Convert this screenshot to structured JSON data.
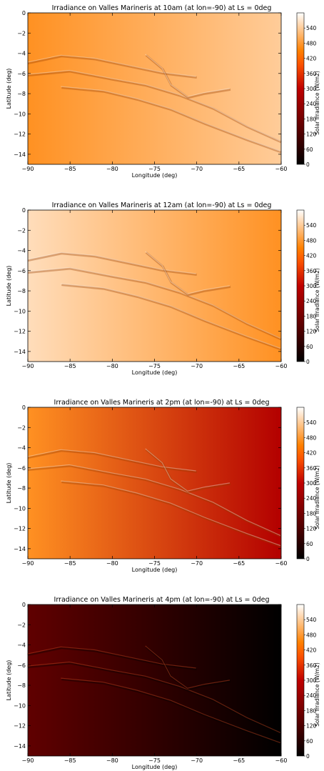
{
  "chart_data": [
    {
      "type": "heatmap",
      "title": "Irradiance on Valles Marineris at 10am (at lon=-90) at Ls = 0deg",
      "xlabel": "Longitude (deg)",
      "ylabel": "Latitude (deg)",
      "xlim": [
        -90,
        -60
      ],
      "ylim": [
        -15,
        0
      ],
      "xticks": [
        -90,
        -85,
        -80,
        -75,
        -70,
        -65,
        -60
      ],
      "yticks": [
        0,
        -2,
        -4,
        -6,
        -8,
        -10,
        -12,
        -14
      ],
      "grid": false,
      "colorbar": {
        "label": "Solar Irradiance (W/m2)",
        "ticks": [
          0,
          60,
          120,
          180,
          240,
          300,
          360,
          420,
          480,
          540
        ],
        "range": [
          0,
          600
        ]
      },
      "approx_irradiance": {
        "west": 470,
        "east": 540
      }
    },
    {
      "type": "heatmap",
      "title": "Irradiance on Valles Marineris at 12am (at lon=-90) at Ls = 0deg",
      "xlabel": "Longitude (deg)",
      "ylabel": "Latitude (deg)",
      "xlim": [
        -90,
        -60
      ],
      "ylim": [
        -15,
        0
      ],
      "xticks": [
        -90,
        -85,
        -80,
        -75,
        -70,
        -65,
        -60
      ],
      "yticks": [
        0,
        -2,
        -4,
        -6,
        -8,
        -10,
        -12,
        -14
      ],
      "grid": false,
      "colorbar": {
        "label": "Solar Irradiance (W/m2)",
        "ticks": [
          0,
          60,
          120,
          180,
          240,
          300,
          360,
          420,
          480,
          540
        ],
        "range": [
          0,
          600
        ]
      },
      "approx_irradiance": {
        "west": 560,
        "east": 470
      }
    },
    {
      "type": "heatmap",
      "title": "Irradiance on Valles Marineris at 2pm (at lon=-90) at Ls = 0deg",
      "xlabel": "Longitude (deg)",
      "ylabel": "Latitude (deg)",
      "xlim": [
        -90,
        -60
      ],
      "ylim": [
        -15,
        0
      ],
      "xticks": [
        -90,
        -85,
        -80,
        -75,
        -70,
        -65,
        -60
      ],
      "yticks": [
        0,
        -2,
        -4,
        -6,
        -8,
        -10,
        -12,
        -14
      ],
      "grid": false,
      "colorbar": {
        "label": "Solar Irradiance (W/m2)",
        "ticks": [
          0,
          60,
          120,
          180,
          240,
          300,
          360,
          420,
          480,
          540
        ],
        "range": [
          0,
          600
        ]
      },
      "approx_irradiance": {
        "west": 470,
        "east": 280
      }
    },
    {
      "type": "heatmap",
      "title": "Irradiance on Valles Marineris at 4pm (at lon=-90) at Ls = 0deg",
      "xlabel": "Longitude (deg)",
      "ylabel": "Latitude (deg)",
      "xlim": [
        -90,
        -60
      ],
      "ylim": [
        -15,
        0
      ],
      "xticks": [
        -90,
        -85,
        -80,
        -75,
        -70,
        -65,
        -60
      ],
      "yticks": [
        0,
        -2,
        -4,
        -6,
        -8,
        -10,
        -12,
        -14
      ],
      "grid": false,
      "colorbar": {
        "label": "Solar Irradiance (W/m2)",
        "ticks": [
          0,
          60,
          120,
          180,
          240,
          300,
          360,
          420,
          480,
          540
        ],
        "range": [
          0,
          600
        ]
      },
      "approx_irradiance": {
        "west": 150,
        "east": 0
      }
    }
  ]
}
